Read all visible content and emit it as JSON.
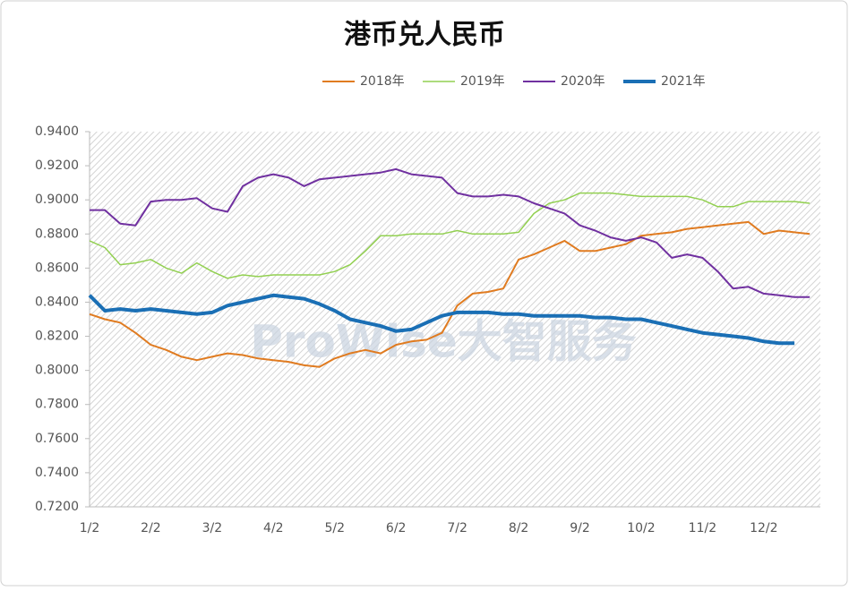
{
  "chart_data": {
    "type": "line",
    "title": "港币兑人民币",
    "watermark": "ProWise大智服务",
    "categories": [
      "1/2",
      null,
      null,
      null,
      "2/2",
      null,
      null,
      null,
      "3/2",
      null,
      null,
      null,
      "4/2",
      null,
      null,
      null,
      "5/2",
      null,
      null,
      null,
      "6/2",
      null,
      null,
      null,
      "7/2",
      null,
      null,
      null,
      "8/2",
      null,
      null,
      null,
      "9/2",
      null,
      null,
      null,
      "10/2",
      null,
      null,
      null,
      "11/2",
      null,
      null,
      null,
      "12/2",
      null,
      null,
      null
    ],
    "ylim": [
      0.72,
      0.94
    ],
    "yticks": [
      {
        "value": 0.72,
        "label": "0.7200"
      },
      {
        "value": 0.74,
        "label": "0.7400"
      },
      {
        "value": 0.76,
        "label": "0.7600"
      },
      {
        "value": 0.78,
        "label": "0.7800"
      },
      {
        "value": 0.8,
        "label": "0.8000"
      },
      {
        "value": 0.82,
        "label": "0.8200"
      },
      {
        "value": 0.84,
        "label": "0.8400"
      },
      {
        "value": 0.86,
        "label": "0.8600"
      },
      {
        "value": 0.88,
        "label": "0.8800"
      },
      {
        "value": 0.9,
        "label": "0.9000"
      },
      {
        "value": 0.92,
        "label": "0.9200"
      },
      {
        "value": 0.94,
        "label": "0.9400"
      }
    ],
    "legend": "top",
    "series": [
      {
        "name": "2018年",
        "color": "#e07b20",
        "width": 2,
        "values": [
          0.833,
          0.83,
          0.828,
          0.822,
          0.815,
          0.812,
          0.808,
          0.806,
          0.808,
          0.81,
          0.809,
          0.807,
          0.806,
          0.805,
          0.803,
          0.802,
          0.807,
          0.81,
          0.812,
          0.81,
          0.815,
          0.817,
          0.818,
          0.822,
          0.838,
          0.845,
          0.846,
          0.848,
          0.865,
          0.868,
          0.872,
          0.876,
          0.87,
          0.87,
          0.872,
          0.874,
          0.879,
          0.88,
          0.881,
          0.883,
          0.884,
          0.885,
          0.886,
          0.887,
          0.88,
          0.882,
          0.881,
          0.88
        ]
      },
      {
        "name": "2019年",
        "color": "#92d050",
        "width": 1.5,
        "values": [
          0.876,
          0.872,
          0.862,
          0.863,
          0.865,
          0.86,
          0.857,
          0.863,
          0.858,
          0.854,
          0.856,
          0.855,
          0.856,
          0.856,
          0.856,
          0.856,
          0.858,
          0.862,
          0.87,
          0.879,
          0.879,
          0.88,
          0.88,
          0.88,
          0.882,
          0.88,
          0.88,
          0.88,
          0.881,
          0.892,
          0.898,
          0.9,
          0.904,
          0.904,
          0.904,
          0.903,
          0.902,
          0.902,
          0.902,
          0.902,
          0.9,
          0.896,
          0.896,
          0.899,
          0.899,
          0.899,
          0.899,
          0.898
        ]
      },
      {
        "name": "2020年",
        "color": "#7030a0",
        "width": 2,
        "values": [
          0.894,
          0.894,
          0.886,
          0.885,
          0.899,
          0.9,
          0.9,
          0.901,
          0.895,
          0.893,
          0.908,
          0.913,
          0.915,
          0.913,
          0.908,
          0.912,
          0.913,
          0.914,
          0.915,
          0.916,
          0.918,
          0.915,
          0.914,
          0.913,
          0.904,
          0.902,
          0.902,
          0.903,
          0.902,
          0.898,
          0.895,
          0.892,
          0.885,
          0.882,
          0.878,
          0.876,
          0.878,
          0.875,
          0.866,
          0.868,
          0.866,
          0.858,
          0.848,
          0.849,
          0.845,
          0.844,
          0.843,
          0.843
        ]
      },
      {
        "name": "2021年",
        "color": "#1a6fb5",
        "width": 4,
        "values": [
          0.844,
          0.835,
          0.836,
          0.835,
          0.836,
          0.835,
          0.834,
          0.833,
          0.834,
          0.838,
          0.84,
          0.842,
          0.844,
          0.843,
          0.842,
          0.839,
          0.835,
          0.83,
          0.828,
          0.826,
          0.823,
          0.824,
          0.828,
          0.832,
          0.834,
          0.834,
          0.834,
          0.833,
          0.833,
          0.832,
          0.832,
          0.832,
          0.832,
          0.831,
          0.831,
          0.83,
          0.83,
          0.828,
          0.826,
          0.824,
          0.822,
          0.821,
          0.82,
          0.819,
          0.817,
          0.816,
          0.816,
          null
        ]
      }
    ]
  }
}
